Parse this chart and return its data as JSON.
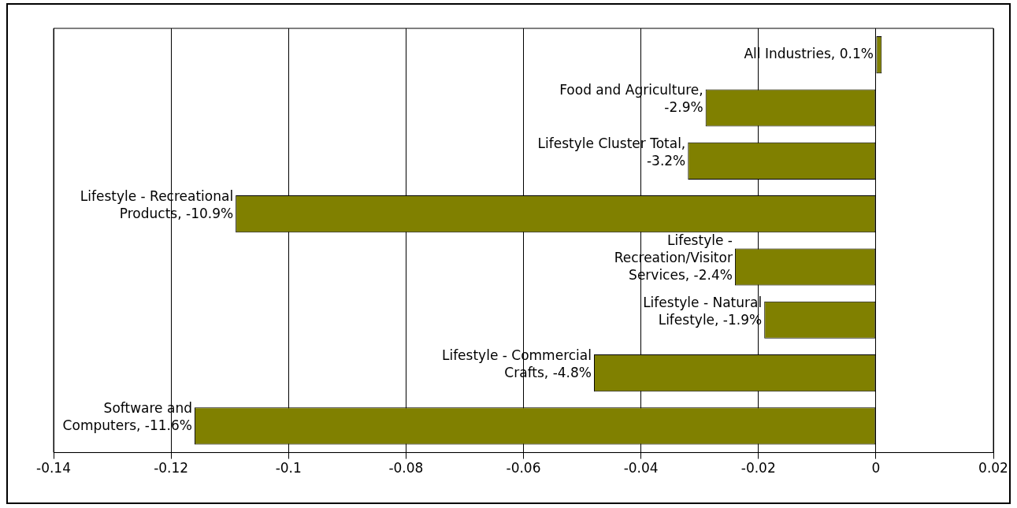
{
  "chart_data": {
    "type": "bar",
    "orientation": "horizontal",
    "categories": [
      null,
      null,
      null,
      null,
      null,
      null,
      null,
      null
    ],
    "values": [
      0.001,
      -0.029,
      -0.032,
      -0.109,
      -0.024,
      -0.019,
      -0.048,
      -0.116
    ],
    "value_labels": [
      "All Industries, 0.1%",
      "Food and Agriculture,\n-2.9%",
      "Lifestyle Cluster Total,\n-3.2%",
      "Lifestyle - Recreational\nProducts, -10.9%",
      "Lifestyle -\nRecreation/Visitor\nServices, -2.4%",
      "Lifestyle - Natural\nLifestyle, -1.9%",
      "Lifestyle - Commercial\nCrafts, -4.8%",
      "Software and\nComputers, -11.6%"
    ],
    "color": "#808000",
    "xlim": [
      -0.14,
      0.02
    ],
    "xticks": [
      -0.14,
      -0.12,
      -0.1,
      -0.08,
      -0.06,
      -0.04,
      -0.02,
      0,
      0.02
    ],
    "grid": "x",
    "legend": false
  }
}
